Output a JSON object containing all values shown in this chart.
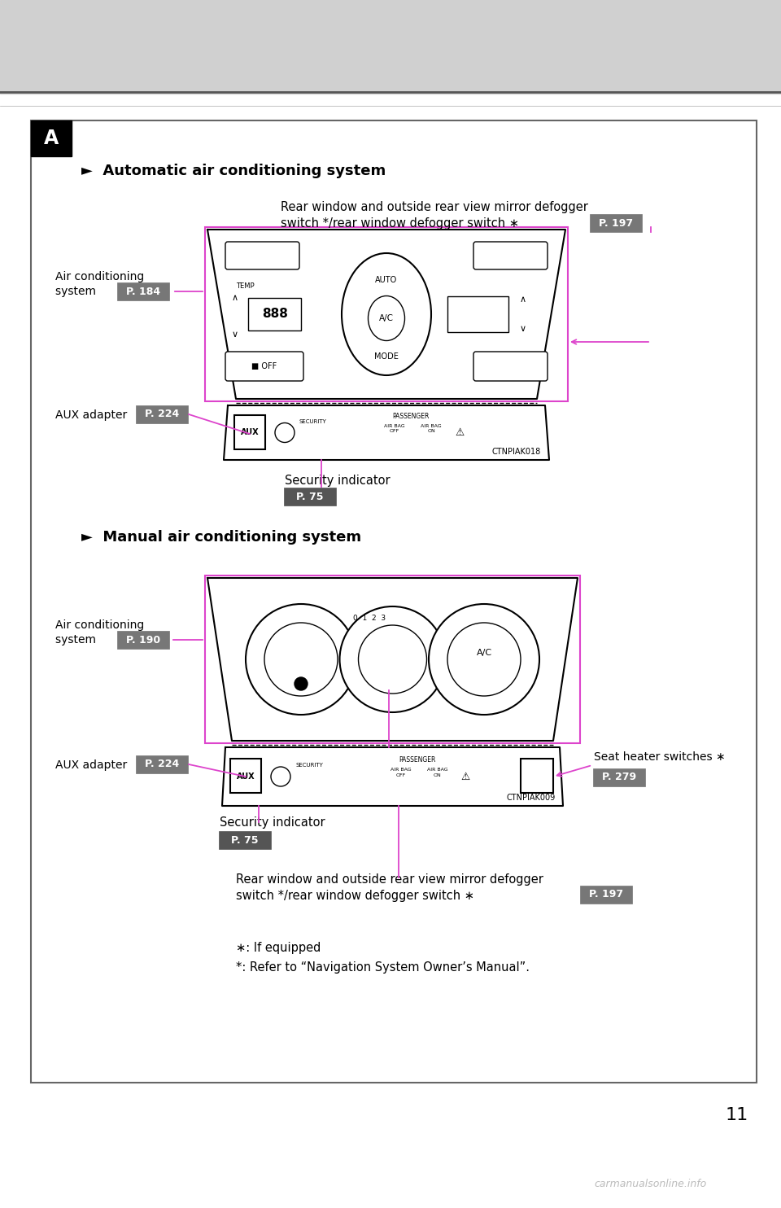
{
  "page_number": "11",
  "bg_color": "#ffffff",
  "header_color": "#d0d0d0",
  "box_label": "A",
  "section1_title": "►  Automatic air conditioning system",
  "section2_title": "►  Manual air conditioning system",
  "img1_code": "CTNPIAK018",
  "img2_code": "CTNPIAK009",
  "line_color": "#dd44cc",
  "label1_air_line1": "Air conditioning",
  "label1_air_line2": "system",
  "label1_air_page": "P. 184",
  "label1_aux": "AUX adapter",
  "label1_aux_page": "P. 224",
  "label1_sec": "Security indicator",
  "label1_sec_page": "P. 75",
  "label1_rear_line1": "Rear window and outside rear view mirror defogger",
  "label1_rear_line2": "switch */rear window defogger switch ∗",
  "label1_rear_page": "P. 197",
  "label2_air_line1": "Air conditioning",
  "label2_air_line2": "system",
  "label2_air_page": "P. 190",
  "label2_aux": "AUX adapter",
  "label2_aux_page": "P. 224",
  "label2_sec": "Security indicator",
  "label2_sec_page": "P. 75",
  "label2_rear_line1": "Rear window and outside rear view mirror defogger",
  "label2_rear_line2": "switch */rear window defogger switch ∗",
  "label2_rear_page": "P. 197",
  "label2_seat_line1": "Seat heater switches ∗",
  "label2_seat_page": "P. 279",
  "footnote1": "∗: If equipped",
  "footnote2": "*: Refer to “Navigation System Owner’s Manual”.",
  "watermark": "carmanualsonline.info",
  "badge_color": "#777777"
}
